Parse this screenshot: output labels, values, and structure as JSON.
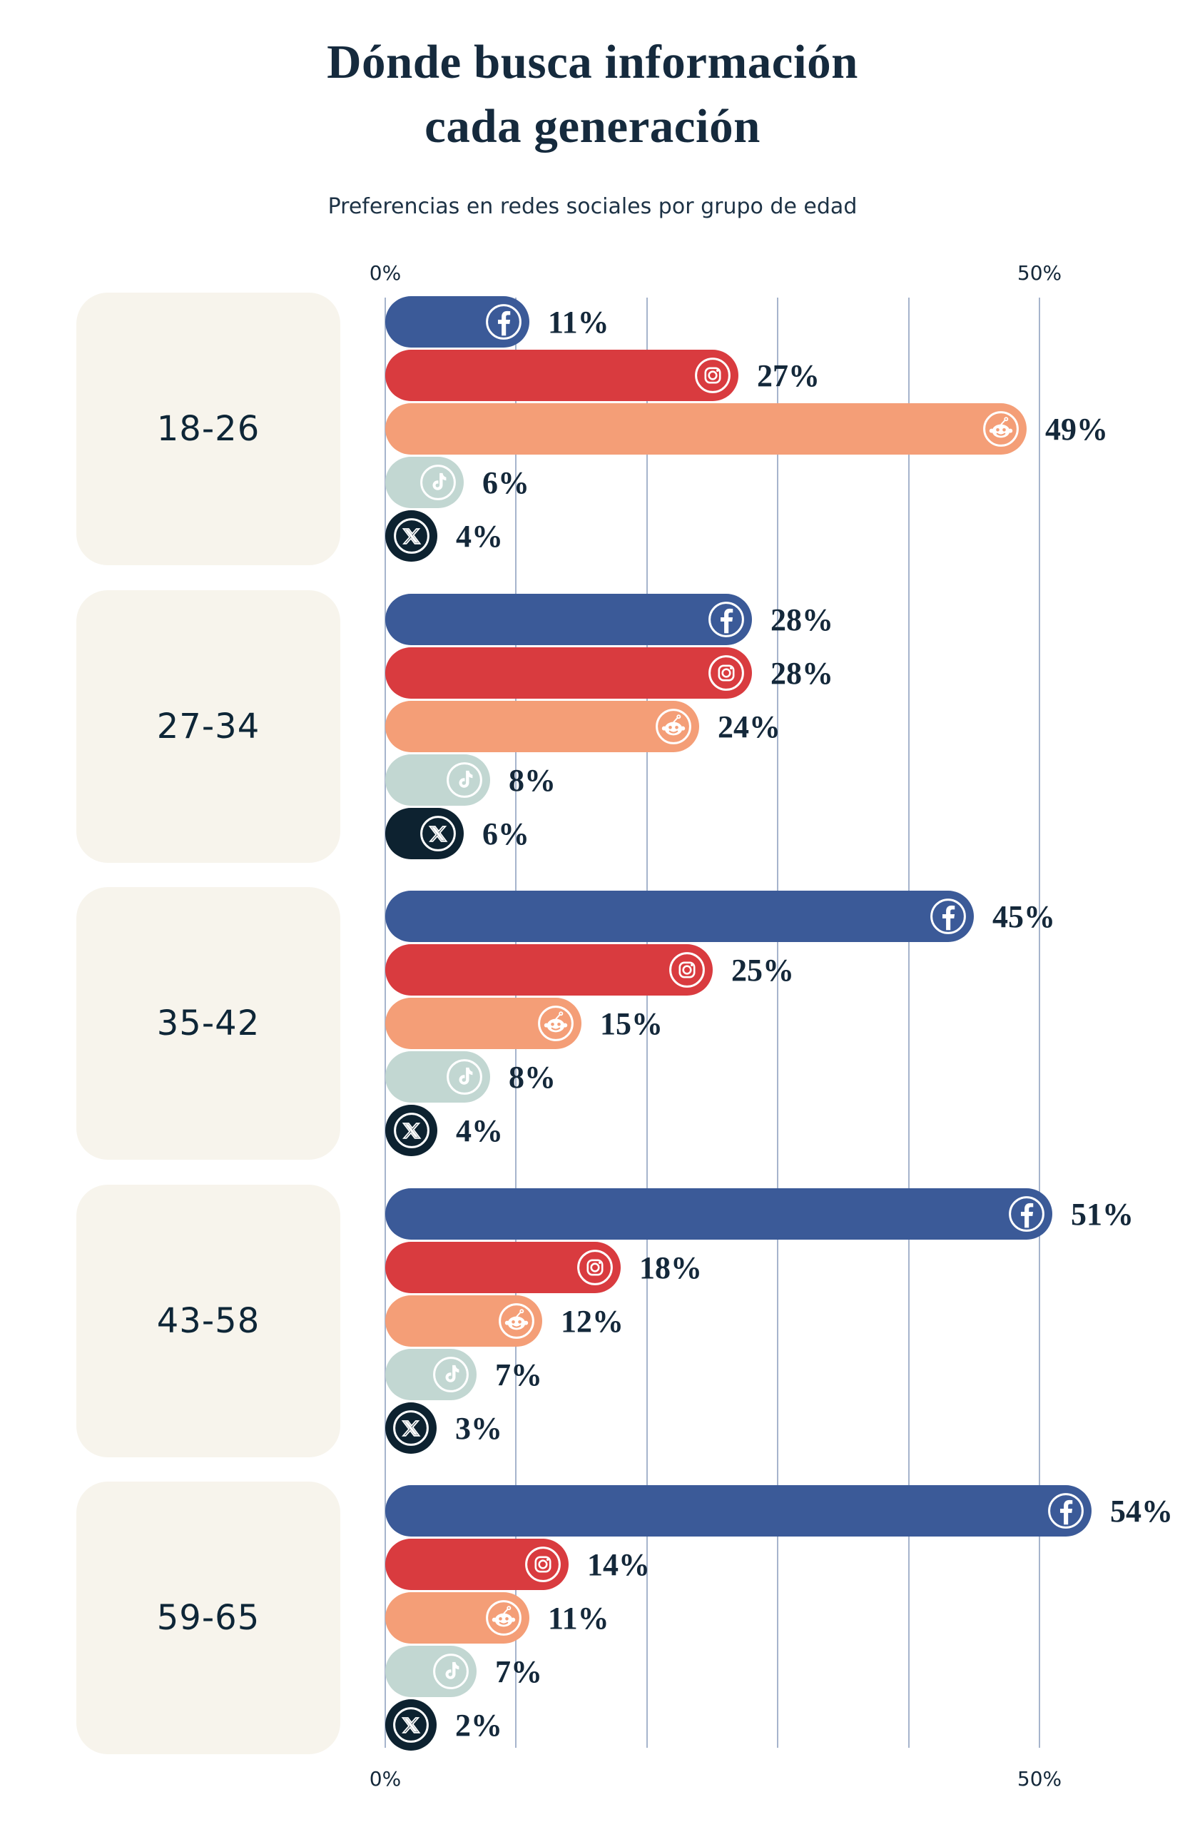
{
  "title": "Dónde busca información\ncada generación",
  "subtitle": "Preferencias en redes sociales por grupo de edad",
  "axis": {
    "min": 0,
    "max": 50,
    "min_label": "0%",
    "max_label": "50%",
    "gridline_step": 10
  },
  "colors": {
    "background": "#FFFFFF",
    "card_bg": "#F7F4EC",
    "text_navy": "#14283A",
    "gridline": "#A6B4CC",
    "facebook": "#3B5A98",
    "instagram": "#D93B3F",
    "reddit": "#F49E77",
    "tiktok": "#C2D7D2",
    "x": "#0D2230"
  },
  "chart_data": {
    "type": "bar",
    "orientation": "horizontal",
    "title": "Dónde busca información cada generación",
    "subtitle": "Preferencias en redes sociales por grupo de edad",
    "xlabel": "",
    "ylabel": "",
    "xlim": [
      0,
      50
    ],
    "grid": true,
    "legend": false,
    "value_suffix": "%",
    "tick_labels_shown": [
      "0%",
      "50%"
    ],
    "categories": [
      "18-26",
      "27-34",
      "35-42",
      "43-58",
      "59-65"
    ],
    "platforms": [
      {
        "name": "Facebook",
        "icon": "facebook-icon",
        "color": "#3B5A98"
      },
      {
        "name": "Instagram",
        "icon": "instagram-icon",
        "color": "#D93B3F"
      },
      {
        "name": "Reddit",
        "icon": "reddit-icon",
        "color": "#F49E77"
      },
      {
        "name": "TikTok",
        "icon": "tiktok-icon",
        "color": "#C2D7D2"
      },
      {
        "name": "X",
        "icon": "x-icon",
        "color": "#0D2230"
      }
    ],
    "series": [
      {
        "name": "Facebook",
        "values": [
          11,
          28,
          45,
          51,
          54
        ]
      },
      {
        "name": "Instagram",
        "values": [
          27,
          28,
          25,
          18,
          14
        ]
      },
      {
        "name": "Reddit",
        "values": [
          49,
          24,
          15,
          12,
          11
        ]
      },
      {
        "name": "TikTok",
        "values": [
          6,
          8,
          8,
          7,
          7
        ]
      },
      {
        "name": "X",
        "values": [
          4,
          6,
          4,
          3,
          2
        ]
      }
    ],
    "groups": [
      {
        "label": "18-26",
        "values": [
          11,
          27,
          49,
          6,
          4
        ]
      },
      {
        "label": "27-34",
        "values": [
          28,
          28,
          24,
          8,
          6
        ]
      },
      {
        "label": "35-42",
        "values": [
          45,
          25,
          15,
          8,
          4
        ]
      },
      {
        "label": "43-58",
        "values": [
          51,
          18,
          12,
          7,
          3
        ]
      },
      {
        "label": "59-65",
        "values": [
          54,
          14,
          11,
          7,
          2
        ]
      }
    ]
  }
}
